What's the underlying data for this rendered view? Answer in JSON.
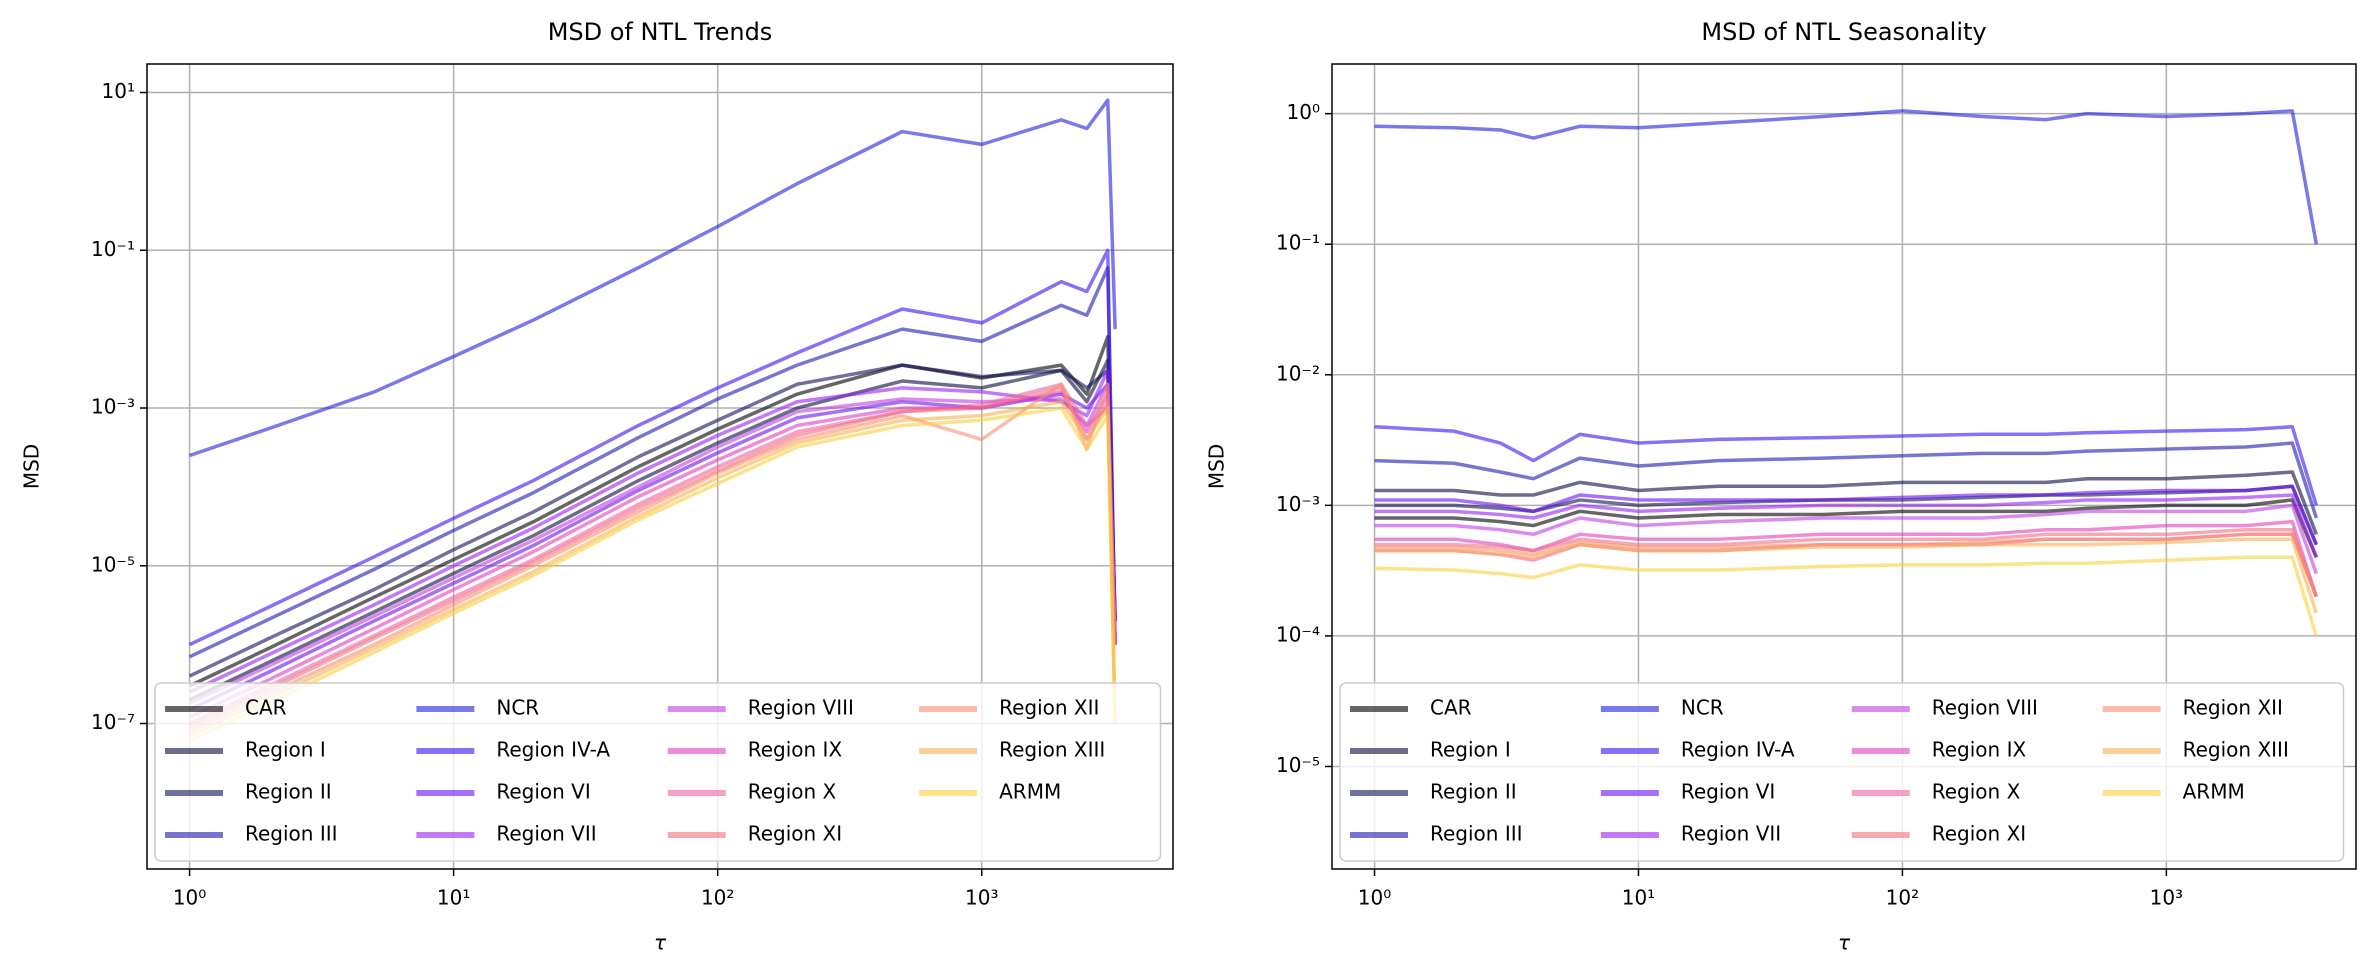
{
  "chart_data": [
    {
      "type": "line",
      "title": "MSD of NTL Trends",
      "xlabel": "τ",
      "ylabel": "MSD",
      "log_x": true,
      "log_y": true,
      "grid": true,
      "legend": "lower left",
      "xlim": [
        0.69,
        5300
      ],
      "ylim": [
        1.43e-09,
        23
      ],
      "xticks": [
        {
          "value": 1,
          "label": "10⁰"
        },
        {
          "value": 10,
          "label": "10¹"
        },
        {
          "value": 100,
          "label": "10²"
        },
        {
          "value": 1000,
          "label": "10³"
        }
      ],
      "yticks": [
        {
          "value": 10,
          "label": "10¹"
        },
        {
          "value": 0.1,
          "label": "10⁻¹"
        },
        {
          "value": 0.001,
          "label": "10⁻³"
        },
        {
          "value": 1e-05,
          "label": "10⁻⁵"
        },
        {
          "value": 1e-07,
          "label": "10⁻⁷"
        }
      ],
      "x": [
        1,
        2,
        5,
        10,
        20,
        50,
        100,
        200,
        500,
        1000,
        2000,
        2500,
        3000,
        3200
      ],
      "series": [
        {
          "name": "CAR",
          "color": "#000000",
          "values": [
            3e-07,
            9e-07,
            4e-06,
            1.2e-05,
            3.6e-05,
            0.00018,
            0.00054,
            0.0015,
            0.0035,
            0.0024,
            0.0035,
            0.0015,
            0.008,
            2e-06
          ]
        },
        {
          "name": "Region I",
          "color": "#0a0a40",
          "values": [
            2e-07,
            6e-07,
            2.6e-06,
            8e-06,
            2.4e-05,
            0.00012,
            0.00036,
            0.001,
            0.0022,
            0.0018,
            0.003,
            0.0012,
            0.004,
            1e-06
          ]
        },
        {
          "name": "Region II",
          "color": "#10105a",
          "values": [
            4e-07,
            1.2e-06,
            5e-06,
            1.6e-05,
            4.8e-05,
            0.00024,
            0.0007,
            0.002,
            0.0035,
            0.0025,
            0.003,
            0.0018,
            0.003,
            2e-06
          ]
        },
        {
          "name": "Region III",
          "color": "#1a1ab0",
          "values": [
            7e-07,
            2.1e-06,
            9e-06,
            2.8e-05,
            8.4e-05,
            0.00042,
            0.0013,
            0.0035,
            0.01,
            0.007,
            0.02,
            0.015,
            0.06,
            1e-06
          ]
        },
        {
          "name": "NCR",
          "color": "#2020e0",
          "values": [
            0.00025,
            0.00055,
            0.0016,
            0.0045,
            0.013,
            0.06,
            0.2,
            0.7,
            3.2,
            2.2,
            4.5,
            3.5,
            8,
            0.01
          ]
        },
        {
          "name": "Region IV-A",
          "color": "#3a10f0",
          "values": [
            1e-06,
            3e-06,
            1.3e-05,
            4e-05,
            0.00012,
            0.0006,
            0.0018,
            0.005,
            0.018,
            0.012,
            0.04,
            0.03,
            0.1,
            1e-06
          ]
        },
        {
          "name": "Region VI",
          "color": "#6a10f0",
          "values": [
            1.5e-07,
            4.5e-07,
            2e-06,
            6e-06,
            1.8e-05,
            9e-05,
            0.00027,
            0.00075,
            0.0012,
            0.001,
            0.0015,
            0.001,
            0.002,
            1e-06
          ]
        },
        {
          "name": "Region VII",
          "color": "#9a20f0",
          "values": [
            2.5e-07,
            7.5e-07,
            3.2e-06,
            1e-05,
            3e-05,
            0.00015,
            0.00045,
            0.0012,
            0.0018,
            0.0016,
            0.0012,
            0.0008,
            0.003,
            1e-06
          ]
        },
        {
          "name": "Region VIII",
          "color": "#c040e0",
          "values": [
            1.8e-07,
            5.4e-07,
            2.3e-06,
            7e-06,
            2.1e-05,
            0.0001,
            0.00032,
            0.0009,
            0.0013,
            0.0012,
            0.0013,
            0.0006,
            0.002,
            1e-06
          ]
        },
        {
          "name": "Region IX",
          "color": "#e040c0",
          "values": [
            1.2e-07,
            3.6e-07,
            1.6e-06,
            5e-06,
            1.5e-05,
            7.5e-05,
            0.00022,
            0.0006,
            0.001,
            0.001,
            0.0016,
            0.0005,
            0.0015,
            1e-06
          ]
        },
        {
          "name": "Region X",
          "color": "#f060a0",
          "values": [
            1e-07,
            3e-07,
            1.3e-06,
            4e-06,
            1.2e-05,
            6e-05,
            0.00018,
            0.0005,
            0.0009,
            0.0011,
            0.002,
            0.0006,
            0.001,
            1e-06
          ]
        },
        {
          "name": "Region XI",
          "color": "#f07080",
          "values": [
            9e-08,
            2.7e-07,
            1.2e-06,
            3.6e-06,
            1.1e-05,
            5.4e-05,
            0.00016,
            0.00045,
            0.0009,
            0.001,
            0.0018,
            0.0004,
            0.0012,
            1e-06
          ]
        },
        {
          "name": "Region XII",
          "color": "#f89070",
          "values": [
            8e-08,
            2.4e-07,
            1e-06,
            3.2e-06,
            1e-05,
            4.8e-05,
            0.00015,
            0.0004,
            0.0008,
            0.0004,
            0.002,
            0.0003,
            0.002,
            1e-07
          ]
        },
        {
          "name": "Region XIII",
          "color": "#f8b050",
          "values": [
            7e-08,
            2.1e-07,
            9e-07,
            2.8e-06,
            8.4e-06,
            4.2e-05,
            0.00013,
            0.00036,
            0.0007,
            0.0008,
            0.0012,
            0.0004,
            0.001,
            1e-07
          ]
        },
        {
          "name": "ARMM",
          "color": "#f8d040",
          "values": [
            6e-08,
            1.8e-07,
            8e-07,
            2.5e-06,
            7.5e-06,
            3.8e-05,
            0.00011,
            0.00032,
            0.0006,
            0.0007,
            0.001,
            0.0003,
            0.0008,
            1e-07
          ]
        }
      ]
    },
    {
      "type": "line",
      "title": "MSD of NTL Seasonality",
      "xlabel": "τ",
      "ylabel": "MSD",
      "log_x": true,
      "log_y": true,
      "grid": true,
      "legend": "lower left",
      "xlim": [
        0.69,
        5230
      ],
      "ylim": [
        1.64e-06,
        2.4
      ],
      "xticks": [
        {
          "value": 1,
          "label": "10⁰"
        },
        {
          "value": 10,
          "label": "10¹"
        },
        {
          "value": 100,
          "label": "10²"
        },
        {
          "value": 1000,
          "label": "10³"
        }
      ],
      "yticks": [
        {
          "value": 1,
          "label": "10⁰"
        },
        {
          "value": 0.1,
          "label": "10⁻¹"
        },
        {
          "value": 0.01,
          "label": "10⁻²"
        },
        {
          "value": 0.001,
          "label": "10⁻³"
        },
        {
          "value": 0.0001,
          "label": "10⁻⁴"
        },
        {
          "value": 1e-05,
          "label": "10⁻⁵"
        }
      ],
      "x": [
        1,
        2,
        3,
        4,
        6,
        10,
        20,
        50,
        100,
        200,
        350,
        500,
        1000,
        2000,
        3000,
        3700
      ],
      "series": [
        {
          "name": "CAR",
          "color": "#000000",
          "values": [
            0.0008,
            0.0008,
            0.00075,
            0.0007,
            0.0009,
            0.0008,
            0.00085,
            0.00085,
            0.0009,
            0.0009,
            0.0009,
            0.00095,
            0.001,
            0.001,
            0.0011,
            0.0004
          ]
        },
        {
          "name": "Region I",
          "color": "#0a0a40",
          "values": [
            0.0013,
            0.0013,
            0.0012,
            0.0012,
            0.0015,
            0.0013,
            0.0014,
            0.0014,
            0.0015,
            0.0015,
            0.0015,
            0.0016,
            0.0016,
            0.0017,
            0.0018,
            0.0006
          ]
        },
        {
          "name": "Region II",
          "color": "#10105a",
          "values": [
            0.001,
            0.001,
            0.00095,
            0.0009,
            0.0011,
            0.001,
            0.00105,
            0.0011,
            0.0011,
            0.00115,
            0.0012,
            0.0012,
            0.00125,
            0.0013,
            0.0014,
            0.0005
          ]
        },
        {
          "name": "Region III",
          "color": "#1a1ab0",
          "values": [
            0.0022,
            0.0021,
            0.0018,
            0.0016,
            0.0023,
            0.002,
            0.0022,
            0.0023,
            0.0024,
            0.0025,
            0.0025,
            0.0026,
            0.0027,
            0.0028,
            0.003,
            0.0008
          ]
        },
        {
          "name": "NCR",
          "color": "#2020e0",
          "values": [
            0.8,
            0.78,
            0.75,
            0.65,
            0.8,
            0.78,
            0.85,
            0.95,
            1.05,
            0.95,
            0.9,
            1.0,
            0.95,
            1.0,
            1.05,
            0.1
          ]
        },
        {
          "name": "Region IV-A",
          "color": "#3a10f0",
          "values": [
            0.004,
            0.0037,
            0.003,
            0.0022,
            0.0035,
            0.003,
            0.0032,
            0.0033,
            0.0034,
            0.0035,
            0.0035,
            0.0036,
            0.0037,
            0.0038,
            0.004,
            0.001
          ]
        },
        {
          "name": "Region VI",
          "color": "#6a10f0",
          "values": [
            0.0011,
            0.0011,
            0.001,
            0.0009,
            0.0012,
            0.0011,
            0.0011,
            0.0011,
            0.00115,
            0.0012,
            0.0012,
            0.00125,
            0.0013,
            0.0013,
            0.0014,
            0.0005
          ]
        },
        {
          "name": "Region VII",
          "color": "#9a20f0",
          "values": [
            0.0009,
            0.0009,
            0.00085,
            0.0008,
            0.001,
            0.0009,
            0.00095,
            0.001,
            0.001,
            0.001,
            0.00105,
            0.0011,
            0.0011,
            0.00115,
            0.0012,
            0.0004
          ]
        },
        {
          "name": "Region VIII",
          "color": "#c040e0",
          "values": [
            0.0007,
            0.0007,
            0.00065,
            0.0006,
            0.0008,
            0.0007,
            0.00075,
            0.0008,
            0.0008,
            0.0008,
            0.00085,
            0.0009,
            0.0009,
            0.0009,
            0.001,
            0.0003
          ]
        },
        {
          "name": "Region IX",
          "color": "#e040c0",
          "values": [
            0.00055,
            0.00055,
            0.0005,
            0.00045,
            0.0006,
            0.00055,
            0.00055,
            0.0006,
            0.0006,
            0.0006,
            0.00065,
            0.00065,
            0.0007,
            0.0007,
            0.00075,
            0.0002
          ]
        },
        {
          "name": "Region X",
          "color": "#f060a0",
          "values": [
            0.00045,
            0.00045,
            0.00042,
            0.00038,
            0.0005,
            0.00045,
            0.00045,
            0.0005,
            0.0005,
            0.0005,
            0.00055,
            0.00055,
            0.00055,
            0.0006,
            0.0006,
            0.0002
          ]
        },
        {
          "name": "Region XI",
          "color": "#f07080",
          "values": [
            0.0005,
            0.0005,
            0.00048,
            0.00045,
            0.00055,
            0.0005,
            0.0005,
            0.00055,
            0.00055,
            0.00055,
            0.0006,
            0.0006,
            0.0006,
            0.00065,
            0.00065,
            0.0002
          ]
        },
        {
          "name": "Region XII",
          "color": "#f89070",
          "values": [
            0.00048,
            0.00048,
            0.00045,
            0.00042,
            0.00052,
            0.00048,
            0.00048,
            0.0005,
            0.0005,
            0.00052,
            0.00055,
            0.00055,
            0.00055,
            0.0006,
            0.0006,
            0.0002
          ]
        },
        {
          "name": "Region XIII",
          "color": "#f8b050",
          "values": [
            0.00045,
            0.00045,
            0.00042,
            0.0004,
            0.0005,
            0.00045,
            0.00045,
            0.00048,
            0.00048,
            0.0005,
            0.0005,
            0.0005,
            0.00052,
            0.00055,
            0.00055,
            0.00015
          ]
        },
        {
          "name": "ARMM",
          "color": "#f8d040",
          "values": [
            0.00033,
            0.00032,
            0.0003,
            0.00028,
            0.00035,
            0.00032,
            0.00032,
            0.00034,
            0.00035,
            0.00035,
            0.00036,
            0.00036,
            0.00038,
            0.0004,
            0.0004,
            0.0001
          ]
        }
      ]
    }
  ]
}
